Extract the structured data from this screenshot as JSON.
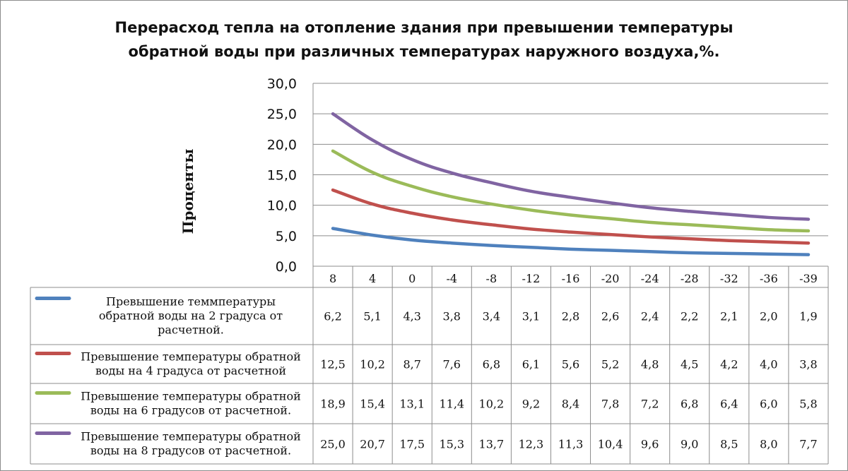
{
  "chart_data": {
    "type": "line",
    "title": "Перерасход тепла на отопление здания при  превышении температуры обратной воды  при различных температурах наружного воздуха,%.",
    "title_lines": [
      "Перерасход тепла на отопление здания при  превышении температуры",
      "обратной воды  при различных температурах наружного воздуха,%."
    ],
    "xlabel": "",
    "ylabel": "Проценты",
    "categories": [
      "8",
      "4",
      "0",
      "-4",
      "-8",
      "-12",
      "-16",
      "-20",
      "-24",
      "-28",
      "-32",
      "-36",
      "-39"
    ],
    "ylim": [
      0,
      30
    ],
    "yticks": [
      "0,0",
      "5,0",
      "10,0",
      "15,0",
      "20,0",
      "25,0",
      "30,0"
    ],
    "grid": true,
    "legend_placement": "data-table",
    "series": [
      {
        "name_lines": [
          "Превышение теммпературы",
          "обратной воды на 2 градуса от",
          "расчетной."
        ],
        "name": "Превышение теммпературы обратной воды на 2 градуса от расчетной.",
        "color": "#4f81bd",
        "values": [
          6.2,
          5.1,
          4.3,
          3.8,
          3.4,
          3.1,
          2.8,
          2.6,
          2.4,
          2.2,
          2.1,
          2.0,
          1.9
        ],
        "labels": [
          "6,2",
          "5,1",
          "4,3",
          "3,8",
          "3,4",
          "3,1",
          "2,8",
          "2,6",
          "2,4",
          "2,2",
          "2,1",
          "2,0",
          "1,9"
        ]
      },
      {
        "name_lines": [
          "Превышение температуры обратной",
          "воды на 4 градуса от расчетной"
        ],
        "name": "Превышение температуры обратной воды на 4 градуса от расчетной",
        "color": "#c0504d",
        "values": [
          12.5,
          10.2,
          8.7,
          7.6,
          6.8,
          6.1,
          5.6,
          5.2,
          4.8,
          4.5,
          4.2,
          4.0,
          3.8
        ],
        "labels": [
          "12,5",
          "10,2",
          "8,7",
          "7,6",
          "6,8",
          "6,1",
          "5,6",
          "5,2",
          "4,8",
          "4,5",
          "4,2",
          "4,0",
          "3,8"
        ]
      },
      {
        "name_lines": [
          "Превышение температуры обратной",
          "воды на 6 градусов от расчетной."
        ],
        "name": "Превышение температуры обратной воды на 6 градусов от расчетной.",
        "color": "#9bbb59",
        "values": [
          18.9,
          15.4,
          13.1,
          11.4,
          10.2,
          9.2,
          8.4,
          7.8,
          7.2,
          6.8,
          6.4,
          6.0,
          5.8
        ],
        "labels": [
          "18,9",
          "15,4",
          "13,1",
          "11,4",
          "10,2",
          "9,2",
          "8,4",
          "7,8",
          "7,2",
          "6,8",
          "6,4",
          "6,0",
          "5,8"
        ]
      },
      {
        "name_lines": [
          "Превышение температуры обратной",
          "воды на 8 градусов от расчетной."
        ],
        "name": "Превышение температуры обратной воды на 8 градусов от расчетной.",
        "color": "#8064a2",
        "values": [
          25.0,
          20.7,
          17.5,
          15.3,
          13.7,
          12.3,
          11.3,
          10.4,
          9.6,
          9.0,
          8.5,
          8.0,
          7.7
        ],
        "labels": [
          "25,0",
          "20,7",
          "17,5",
          "15,3",
          "13,7",
          "12,3",
          "11,3",
          "10,4",
          "9,6",
          "9,0",
          "8,5",
          "8,0",
          "7,7"
        ]
      }
    ]
  }
}
